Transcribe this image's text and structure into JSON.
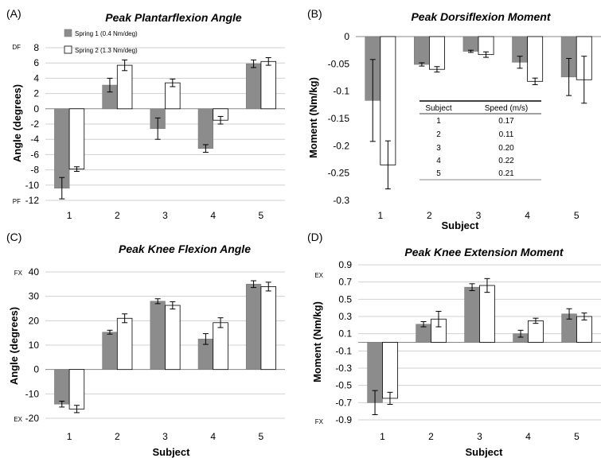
{
  "colors": {
    "series1": "#8c8c8c",
    "series2": "#ffffff",
    "grid": "#d0d0d0",
    "axis": "#868686"
  },
  "legend": [
    "Spring 1 (0.4 Nm/deg)",
    "Spring 2 (1.3 Nm/deg)"
  ],
  "table": {
    "headers": [
      "Subject",
      "Speed (m/s)"
    ],
    "rows": [
      [
        "1",
        "0.17"
      ],
      [
        "2",
        "0.11"
      ],
      [
        "3",
        "0.20"
      ],
      [
        "4",
        "0.22"
      ],
      [
        "5",
        "0.21"
      ]
    ]
  },
  "chart_data": [
    {
      "panel": "(A)",
      "type": "bar",
      "title": "Peak Plantarflexion Angle",
      "xlabel": "",
      "ylabel": "Angle (degrees)",
      "ylim": [
        -12,
        8
      ],
      "yticks": [
        8,
        6,
        4,
        2,
        0,
        -2,
        -4,
        -6,
        -8,
        -10,
        -12
      ],
      "ytick_labels": [
        "8",
        "6",
        "4",
        "2",
        "0",
        "-2",
        "-4",
        "-6",
        "-8",
        "-10",
        "-12"
      ],
      "end_labels": {
        "top": "DF",
        "bottom": "PF"
      },
      "grid": true,
      "legend_position": "top-left",
      "categories": [
        "1",
        "2",
        "3",
        "4",
        "5"
      ],
      "series": [
        {
          "name": "Spring 1 (0.4 Nm/deg)",
          "values": [
            -10.4,
            3.1,
            -2.6,
            -5.2,
            5.9
          ],
          "errors": [
            1.4,
            0.9,
            1.4,
            0.5,
            0.5
          ]
        },
        {
          "name": "Spring 2 (1.3 Nm/deg)",
          "values": [
            -7.9,
            5.7,
            3.4,
            -1.5,
            6.2
          ],
          "errors": [
            0.3,
            0.7,
            0.5,
            0.5,
            0.5
          ]
        }
      ]
    },
    {
      "panel": "(B)",
      "type": "bar",
      "title": "Peak Dorsiflexion Moment",
      "xlabel": "Subject",
      "ylabel": "Moment (Nm/kg)",
      "ylim": [
        -0.3,
        0
      ],
      "yticks": [
        0,
        -0.05,
        -0.1,
        -0.15,
        -0.2,
        -0.25,
        -0.3
      ],
      "ytick_labels": [
        "0",
        "-0.05",
        "-0.1",
        "-0.15",
        "-0.2",
        "-0.25",
        "-0.3"
      ],
      "end_labels": {
        "top": "",
        "bottom": ""
      },
      "grid": false,
      "categories": [
        "1",
        "2",
        "3",
        "4",
        "5"
      ],
      "series": [
        {
          "name": "Spring 1 (0.4 Nm/deg)",
          "values": [
            -0.117,
            -0.051,
            -0.027,
            -0.047,
            -0.074
          ],
          "errors": [
            0.075,
            0.003,
            0.002,
            0.011,
            0.034
          ]
        },
        {
          "name": "Spring 2 (1.3 Nm/deg)",
          "values": [
            -0.235,
            -0.06,
            -0.033,
            -0.082,
            -0.079
          ],
          "errors": [
            0.044,
            0.005,
            0.005,
            0.006,
            0.043
          ]
        }
      ]
    },
    {
      "panel": "(C)",
      "type": "bar",
      "title": "Peak Knee Flexion Angle",
      "xlabel": "Subject",
      "ylabel": "Angle (degrees)",
      "ylim": [
        -20,
        40
      ],
      "yticks": [
        40,
        30,
        20,
        10,
        0,
        -10,
        -20
      ],
      "ytick_labels": [
        "40",
        "30",
        "20",
        "10",
        "0",
        "-10",
        "-20"
      ],
      "end_labels": {
        "top": "FX",
        "bottom": "EX"
      },
      "grid": true,
      "categories": [
        "1",
        "2",
        "3",
        "4",
        "5"
      ],
      "series": [
        {
          "name": "Spring 1 (0.4 Nm/deg)",
          "values": [
            -14.2,
            15.3,
            28,
            12.5,
            35
          ],
          "errors": [
            1.2,
            0.8,
            1.0,
            2.2,
            1.4
          ]
        },
        {
          "name": "Spring 2 (1.3 Nm/deg)",
          "values": [
            -16.2,
            21,
            26.3,
            19.2,
            34
          ],
          "errors": [
            1.5,
            1.8,
            1.5,
            2.0,
            1.8
          ]
        }
      ]
    },
    {
      "panel": "(D)",
      "type": "bar",
      "title": "Peak Knee Extension Moment",
      "xlabel": "Subject",
      "ylabel": "Moment (Nm/kg)",
      "ylim": [
        -0.9,
        0.9
      ],
      "yticks": [
        0.9,
        0.7,
        0.5,
        0.3,
        0.1,
        -0.1,
        -0.3,
        -0.5,
        -0.7,
        -0.9
      ],
      "ytick_labels": [
        "0.9",
        "0.7",
        "0.5",
        "0.3",
        "0.1",
        "-0.1",
        "-0.3",
        "-0.5",
        "-0.7",
        "-0.9"
      ],
      "end_labels": {
        "top": "EX",
        "bottom": "FX"
      },
      "grid": true,
      "categories": [
        "1",
        "2",
        "3",
        "4",
        "5"
      ],
      "series": [
        {
          "name": "Spring 1 (0.4 Nm/deg)",
          "values": [
            -0.7,
            0.21,
            0.64,
            0.1,
            0.33
          ],
          "errors": [
            0.14,
            0.03,
            0.04,
            0.04,
            0.06
          ]
        },
        {
          "name": "Spring 2 (1.3 Nm/deg)",
          "values": [
            -0.65,
            0.27,
            0.66,
            0.25,
            0.3
          ],
          "errors": [
            0.07,
            0.09,
            0.08,
            0.03,
            0.04
          ]
        }
      ]
    }
  ]
}
